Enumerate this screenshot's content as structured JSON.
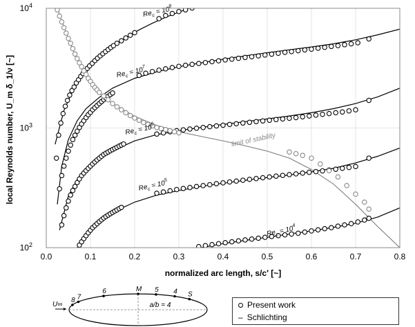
{
  "chart_data": {
    "type": "scatter",
    "xlabel": "normalized arc length, s/c′ [~]",
    "ylabel": "local Reynolds number, U_m δ_1/ν [~]",
    "xlim": [
      0.0,
      0.8
    ],
    "ylim": [
      100,
      10000
    ],
    "y_scale": "log",
    "x_tick_labels": [
      "0.0",
      "0.1",
      "0.2",
      "0.3",
      "0.4",
      "0.5",
      "0.6",
      "0.7",
      "0.8"
    ],
    "y_tick_labels": [
      "10^2",
      "10^3",
      "10^4"
    ],
    "grid": true,
    "series": [
      {
        "name": "Re_c = 10^8",
        "label_at_x": 0.22,
        "label_at_y": 8500,
        "line": {
          "x": [
            0.02,
            0.04,
            0.06,
            0.08,
            0.1,
            0.12,
            0.15,
            0.18,
            0.21,
            0.24,
            0.27,
            0.3,
            0.33
          ],
          "y": [
            730,
            1400,
            2050,
            2700,
            3300,
            3900,
            4800,
            5700,
            6600,
            7500,
            8400,
            9300,
            10200
          ]
        },
        "points": {
          "x": [
            0.023,
            0.028,
            0.033,
            0.038,
            0.043,
            0.048,
            0.053,
            0.058,
            0.063,
            0.068,
            0.073,
            0.078,
            0.083,
            0.088,
            0.093,
            0.098,
            0.104,
            0.11,
            0.116,
            0.122,
            0.128,
            0.134,
            0.14,
            0.146,
            0.152,
            0.16,
            0.17,
            0.18,
            0.19,
            0.2,
            0.255,
            0.27,
            0.285,
            0.3,
            0.315,
            0.33
          ],
          "y": [
            560,
            870,
            1100,
            1320,
            1520,
            1700,
            1880,
            2050,
            2200,
            2380,
            2530,
            2700,
            2850,
            3000,
            3150,
            3300,
            3470,
            3650,
            3830,
            4000,
            4170,
            4350,
            4520,
            4700,
            4870,
            5100,
            5350,
            5650,
            5950,
            6250,
            8200,
            8700,
            9050,
            9400,
            9700,
            10050
          ]
        }
      },
      {
        "name": "Re_c = 10^7",
        "label_at_x": 0.16,
        "label_at_y": 2650,
        "line": {
          "x": [
            0.025,
            0.035,
            0.05,
            0.07,
            0.09,
            0.12,
            0.15,
            0.2,
            0.25,
            0.3,
            0.35,
            0.4,
            0.45,
            0.5,
            0.55,
            0.6,
            0.65,
            0.7,
            0.75,
            0.8
          ],
          "y": [
            230,
            480,
            800,
            1150,
            1450,
            1800,
            2150,
            2600,
            2950,
            3250,
            3500,
            3750,
            4000,
            4250,
            4500,
            4750,
            5050,
            5450,
            6000,
            6700
          ]
        },
        "points": {
          "x": [
            0.03,
            0.035,
            0.04,
            0.045,
            0.05,
            0.055,
            0.06,
            0.065,
            0.07,
            0.075,
            0.08,
            0.085,
            0.09,
            0.095,
            0.1,
            0.105,
            0.11,
            0.115,
            0.12,
            0.125,
            0.13,
            0.135,
            0.14,
            0.145,
            0.15,
            0.21,
            0.225,
            0.24,
            0.255,
            0.27,
            0.285,
            0.3,
            0.315,
            0.33,
            0.345,
            0.36,
            0.375,
            0.39,
            0.405,
            0.42,
            0.435,
            0.45,
            0.465,
            0.48,
            0.495,
            0.51,
            0.525,
            0.54,
            0.555,
            0.57,
            0.585,
            0.6,
            0.615,
            0.63,
            0.645,
            0.66,
            0.675,
            0.69,
            0.705,
            0.73
          ],
          "y": [
            310,
            400,
            480,
            560,
            640,
            720,
            800,
            870,
            940,
            1010,
            1080,
            1150,
            1220,
            1290,
            1350,
            1420,
            1480,
            1540,
            1600,
            1660,
            1720,
            1780,
            1840,
            1900,
            1960,
            2750,
            2870,
            2960,
            3040,
            3120,
            3200,
            3270,
            3340,
            3400,
            3460,
            3520,
            3580,
            3640,
            3700,
            3760,
            3820,
            3880,
            3940,
            4000,
            4070,
            4140,
            4210,
            4280,
            4350,
            4420,
            4490,
            4560,
            4640,
            4720,
            4800,
            4880,
            4960,
            5050,
            5150,
            5550
          ]
        }
      },
      {
        "name": "Re_c = 10^6",
        "label_at_x": 0.18,
        "label_at_y": 880,
        "line": {
          "x": [
            0.03,
            0.05,
            0.07,
            0.1,
            0.13,
            0.16,
            0.2,
            0.25,
            0.3,
            0.35,
            0.4,
            0.45,
            0.5,
            0.55,
            0.6,
            0.65,
            0.7,
            0.75,
            0.8
          ],
          "y": [
            140,
            270,
            370,
            480,
            580,
            670,
            780,
            880,
            950,
            1010,
            1070,
            1130,
            1190,
            1260,
            1340,
            1450,
            1600,
            1820,
            2150
          ]
        },
        "points": {
          "x": [
            0.035,
            0.04,
            0.045,
            0.05,
            0.055,
            0.06,
            0.065,
            0.07,
            0.075,
            0.08,
            0.085,
            0.09,
            0.095,
            0.1,
            0.105,
            0.11,
            0.115,
            0.12,
            0.125,
            0.13,
            0.135,
            0.14,
            0.145,
            0.15,
            0.155,
            0.16,
            0.165,
            0.17,
            0.175,
            0.25,
            0.265,
            0.28,
            0.295,
            0.31,
            0.325,
            0.34,
            0.355,
            0.37,
            0.385,
            0.4,
            0.415,
            0.43,
            0.445,
            0.46,
            0.475,
            0.49,
            0.505,
            0.52,
            0.535,
            0.55,
            0.565,
            0.58,
            0.595,
            0.61,
            0.625,
            0.64,
            0.655,
            0.67,
            0.685,
            0.7,
            0.73
          ],
          "y": [
            155,
            185,
            215,
            245,
            275,
            300,
            325,
            350,
            375,
            400,
            420,
            440,
            460,
            480,
            500,
            520,
            540,
            560,
            580,
            600,
            615,
            630,
            645,
            660,
            675,
            690,
            705,
            720,
            735,
            890,
            910,
            930,
            950,
            965,
            980,
            995,
            1010,
            1025,
            1040,
            1055,
            1070,
            1085,
            1100,
            1115,
            1130,
            1145,
            1160,
            1175,
            1190,
            1205,
            1220,
            1240,
            1260,
            1280,
            1300,
            1320,
            1340,
            1360,
            1390,
            1420,
            1700
          ]
        }
      },
      {
        "name": "Re_c = 10^5",
        "label_at_x": 0.21,
        "label_at_y": 300,
        "line": {
          "x": [
            0.07,
            0.1,
            0.13,
            0.16,
            0.2,
            0.25,
            0.3,
            0.35,
            0.4,
            0.45,
            0.5,
            0.55,
            0.6,
            0.65,
            0.7,
            0.75,
            0.8
          ],
          "y": [
            100,
            140,
            175,
            205,
            240,
            275,
            300,
            325,
            345,
            365,
            385,
            405,
            430,
            460,
            510,
            580,
            680
          ]
        },
        "points": {
          "x": [
            0.075,
            0.08,
            0.085,
            0.09,
            0.095,
            0.1,
            0.105,
            0.11,
            0.115,
            0.12,
            0.125,
            0.13,
            0.135,
            0.14,
            0.145,
            0.15,
            0.155,
            0.16,
            0.165,
            0.17,
            0.25,
            0.265,
            0.28,
            0.295,
            0.31,
            0.325,
            0.34,
            0.355,
            0.37,
            0.385,
            0.4,
            0.415,
            0.43,
            0.445,
            0.46,
            0.475,
            0.49,
            0.505,
            0.52,
            0.535,
            0.55,
            0.565,
            0.58,
            0.595,
            0.61,
            0.625,
            0.64,
            0.655,
            0.67,
            0.685,
            0.7,
            0.73
          ],
          "y": [
            105,
            112,
            119,
            126,
            133,
            140,
            147,
            153,
            159,
            165,
            171,
            177,
            182,
            187,
            192,
            197,
            202,
            207,
            212,
            217,
            285,
            292,
            299,
            306,
            312,
            318,
            324,
            330,
            336,
            342,
            348,
            354,
            360,
            366,
            372,
            378,
            384,
            390,
            396,
            402,
            408,
            414,
            420,
            426,
            432,
            438,
            445,
            452,
            460,
            468,
            476,
            560
          ]
        }
      },
      {
        "name": "Re_c = 10^4",
        "label_at_x": 0.5,
        "label_at_y": 125,
        "line": {
          "x": [
            0.3,
            0.35,
            0.4,
            0.45,
            0.5,
            0.55,
            0.6,
            0.65,
            0.7,
            0.75,
            0.8
          ],
          "y": [
            90,
            100,
            108,
            115,
            122,
            130,
            138,
            148,
            160,
            180,
            215
          ]
        },
        "points": {
          "x": [
            0.345,
            0.36,
            0.375,
            0.39,
            0.405,
            0.42,
            0.435,
            0.45,
            0.465,
            0.48,
            0.495,
            0.51,
            0.525,
            0.54,
            0.555,
            0.57,
            0.585,
            0.6,
            0.615,
            0.63,
            0.645,
            0.66,
            0.675,
            0.69,
            0.705,
            0.72,
            0.73
          ],
          "y": [
            102,
            104,
            106,
            108,
            110,
            112,
            114,
            116,
            118,
            120,
            122,
            124,
            126,
            128,
            130,
            132,
            135,
            138,
            141,
            144,
            147,
            151,
            155,
            159,
            164,
            170,
            176
          ]
        }
      },
      {
        "name": "limit of stability",
        "color": "#888888",
        "label_at_x": 0.42,
        "label_at_y": 700,
        "line": {
          "x": [
            0.025,
            0.04,
            0.06,
            0.08,
            0.1,
            0.12,
            0.15,
            0.2,
            0.25,
            0.3,
            0.35,
            0.4,
            0.45,
            0.5,
            0.55,
            0.6,
            0.65,
            0.7,
            0.75,
            0.8
          ],
          "y": [
            10000,
            7000,
            4500,
            3200,
            2400,
            1950,
            1600,
            1250,
            1050,
            930,
            850,
            780,
            710,
            640,
            560,
            450,
            340,
            230,
            150,
            100
          ]
        },
        "points": {
          "x": [
            0.025,
            0.03,
            0.035,
            0.04,
            0.045,
            0.05,
            0.055,
            0.06,
            0.065,
            0.07,
            0.075,
            0.08,
            0.085,
            0.09,
            0.095,
            0.1,
            0.105,
            0.11,
            0.115,
            0.12,
            0.13,
            0.14,
            0.15,
            0.16,
            0.17,
            0.18,
            0.19,
            0.2,
            0.21,
            0.22,
            0.23,
            0.24,
            0.25,
            0.26,
            0.27,
            0.28,
            0.29,
            0.3,
            0.55,
            0.565,
            0.58,
            0.6,
            0.62,
            0.64,
            0.66,
            0.68,
            0.7,
            0.72,
            0.73
          ],
          "y": [
            9700,
            8600,
            7700,
            6900,
            6200,
            5600,
            5100,
            4600,
            4150,
            3800,
            3500,
            3250,
            3000,
            2800,
            2600,
            2450,
            2300,
            2180,
            2080,
            1980,
            1850,
            1720,
            1600,
            1500,
            1420,
            1340,
            1270,
            1210,
            1160,
            1110,
            1070,
            1040,
            1010,
            990,
            970,
            950,
            930,
            910,
            630,
            610,
            590,
            560,
            500,
            440,
            390,
            330,
            280,
            240,
            210
          ]
        }
      }
    ]
  },
  "legend": {
    "present_label": "Present work",
    "schlichting_label": "Schlichting",
    "line_glyph": "–"
  },
  "ellipse": {
    "inflow_label": "U∞",
    "ratio_label": "a/b = 4",
    "station_labels": [
      "8",
      "7",
      "6",
      "M",
      "5",
      "4",
      "S"
    ]
  }
}
